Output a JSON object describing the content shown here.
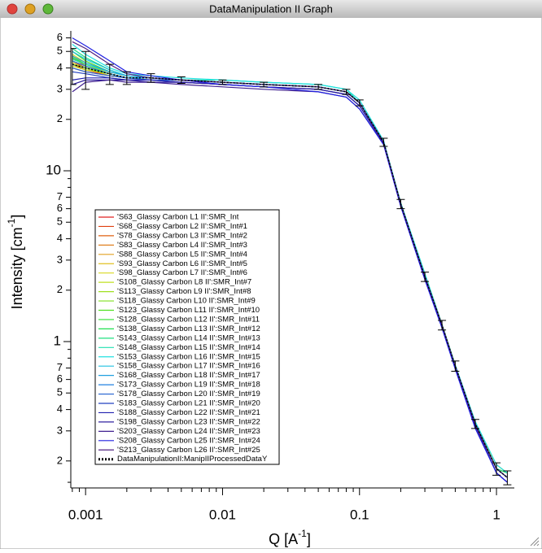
{
  "window": {
    "title": "DataManipulation II Graph"
  },
  "chart_data": {
    "type": "line",
    "log_x": true,
    "log_y": true,
    "xlabel": "Q [A",
    "xlabel_sup": "-1",
    "xlabel_end": "]",
    "ylabel": "Intensity [cm",
    "ylabel_sup": "-1",
    "ylabel_end": "]",
    "xlim": [
      0.00078,
      1.35
    ],
    "ylim": [
      0.139,
      64.5
    ],
    "xticks": [
      {
        "value": 0.001,
        "label": "0.001"
      },
      {
        "value": 0.01,
        "label": "0.01"
      },
      {
        "value": 0.1,
        "label": "0.1"
      },
      1
    ],
    "xminor_ticks": [
      0.0008,
      0.0009,
      0.002,
      0.003,
      0.004,
      0.005,
      0.006,
      0.007,
      0.008,
      0.009,
      0.02,
      0.03,
      0.04,
      0.05,
      0.06,
      0.07,
      0.08,
      0.09,
      0.2,
      0.3,
      0.4,
      0.5,
      0.6,
      0.7,
      0.8,
      0.9
    ],
    "yticks": [
      {
        "value": 60,
        "label": "6"
      },
      {
        "value": 50,
        "label": "5"
      },
      {
        "value": 40,
        "label": "4"
      },
      {
        "value": 30,
        "label": "3"
      },
      {
        "value": 20,
        "label": "2"
      },
      10,
      {
        "value": 7,
        "label": "7"
      },
      6,
      5,
      4,
      3,
      2,
      1,
      {
        "value": 0.7,
        "label": "7"
      },
      {
        "value": 0.6,
        "label": "6"
      },
      {
        "value": 0.5,
        "label": "5"
      },
      {
        "value": 0.4,
        "label": "4"
      },
      {
        "value": 0.3,
        "label": "3"
      },
      {
        "value": 0.2,
        "label": "2"
      }
    ],
    "yminor_ticks": [
      0.15,
      0.8,
      0.9,
      8,
      9
    ],
    "legend": "left",
    "x": [
      0.0008,
      0.001,
      0.0015,
      0.002,
      0.003,
      0.005,
      0.01,
      0.02,
      0.05,
      0.08,
      0.1,
      0.15,
      0.2,
      0.3,
      0.4,
      0.5,
      0.7,
      1,
      1.2
    ],
    "series": [
      {
        "name": "'S63_Glassy Carbon L1 II':SMR_Int",
        "color": "#e02020",
        "values": [
          44,
          40,
          37,
          35,
          35,
          34,
          33,
          32,
          31,
          29,
          25,
          14.7,
          6.4,
          2.4,
          1.25,
          0.72,
          0.33,
          0.18,
          0.16
        ]
      },
      {
        "name": "'S68_Glassy Carbon L2 II':SMR_Int#1",
        "color": "#e04010",
        "values": [
          42,
          39,
          36,
          35,
          35,
          34,
          33,
          32,
          31,
          29,
          25,
          14.8,
          6.5,
          2.4,
          1.26,
          0.72,
          0.33,
          0.18,
          0.17
        ]
      },
      {
        "name": "'S78_Glassy Carbon L3 II':SMR_Int#2",
        "color": "#e06010",
        "values": [
          46,
          41,
          37,
          35,
          35,
          34,
          33,
          32,
          31,
          29,
          25,
          14.7,
          6.4,
          2.4,
          1.25,
          0.71,
          0.33,
          0.18,
          0.16
        ]
      },
      {
        "name": "'S83_Glassy Carbon L4 II':SMR_Int#3",
        "color": "#e08020",
        "values": [
          40,
          38,
          36,
          35,
          35,
          34,
          33,
          32,
          31,
          29,
          25,
          14.6,
          6.3,
          2.4,
          1.24,
          0.72,
          0.33,
          0.18,
          0.16
        ]
      },
      {
        "name": "'S88_Glassy Carbon L5 II':SMR_Int#4",
        "color": "#e0a020",
        "values": [
          45,
          42,
          37,
          35,
          35,
          34,
          33,
          32,
          31,
          29,
          25,
          14.7,
          6.4,
          2.4,
          1.25,
          0.72,
          0.34,
          0.18,
          0.17
        ]
      },
      {
        "name": "'S93_Glassy Carbon L6 II':SMR_Int#5",
        "color": "#e0c020",
        "values": [
          43,
          40,
          36,
          35,
          35,
          34,
          33,
          32,
          31,
          29,
          25,
          14.8,
          6.4,
          2.4,
          1.25,
          0.72,
          0.33,
          0.19,
          0.17
        ]
      },
      {
        "name": "'S98_Glassy Carbon L7 II':SMR_Int#6",
        "color": "#d8d820",
        "values": [
          48,
          43,
          38,
          36,
          35,
          34,
          33,
          32,
          31,
          29,
          25,
          14.7,
          6.4,
          2.4,
          1.25,
          0.72,
          0.33,
          0.18,
          0.16
        ]
      },
      {
        "name": "'S108_Glassy Carbon L8 II':SMR_Int#7",
        "color": "#c0e020",
        "values": [
          41,
          39,
          37,
          35,
          35,
          34,
          33,
          32,
          31,
          29,
          25,
          14.7,
          6.5,
          2.4,
          1.25,
          0.72,
          0.33,
          0.18,
          0.16
        ]
      },
      {
        "name": "'S113_Glassy Carbon L9 II':SMR_Int#8",
        "color": "#a0e020",
        "values": [
          47,
          42,
          37,
          35,
          35,
          34,
          33,
          32,
          31,
          29,
          25,
          14.7,
          6.4,
          2.4,
          1.25,
          0.72,
          0.33,
          0.18,
          0.16
        ]
      },
      {
        "name": "'S118_Glassy Carbon L10 II':SMR_Int#9",
        "color": "#80e020",
        "values": [
          44,
          41,
          37,
          35,
          35,
          34,
          33,
          32,
          31,
          29,
          25,
          14.7,
          6.4,
          2.5,
          1.26,
          0.73,
          0.33,
          0.18,
          0.17
        ]
      },
      {
        "name": "'S123_Glassy Carbon L11 II':SMR_Int#10",
        "color": "#50e020",
        "values": [
          50,
          44,
          38,
          36,
          35,
          34,
          33,
          32,
          31,
          29,
          25,
          14.7,
          6.4,
          2.4,
          1.25,
          0.72,
          0.33,
          0.18,
          0.16
        ]
      },
      {
        "name": "'S128_Glassy Carbon L12 II':SMR_Int#11",
        "color": "#30e030",
        "values": [
          42,
          40,
          37,
          35,
          35,
          34,
          33,
          32,
          31,
          29,
          25,
          14.6,
          6.4,
          2.4,
          1.25,
          0.72,
          0.33,
          0.18,
          0.16
        ]
      },
      {
        "name": "'S138_Glassy Carbon L13 II':SMR_Int#12",
        "color": "#20e050",
        "values": [
          46,
          42,
          38,
          36,
          35,
          34,
          33,
          32,
          31,
          29,
          25,
          14.7,
          6.4,
          2.4,
          1.25,
          0.72,
          0.33,
          0.18,
          0.16
        ]
      },
      {
        "name": "'S143_Glassy Carbon L14 II':SMR_Int#13",
        "color": "#20e080",
        "values": [
          52,
          46,
          39,
          36,
          35,
          34,
          33,
          32,
          31,
          29,
          25,
          14.8,
          6.4,
          2.4,
          1.25,
          0.72,
          0.33,
          0.18,
          0.17
        ]
      },
      {
        "name": "'S148_Glassy Carbon L15 II':SMR_Int#14",
        "color": "#20e0b0",
        "values": [
          45,
          42,
          38,
          36,
          35,
          34,
          34,
          33,
          32,
          30,
          25,
          14.8,
          6.5,
          2.4,
          1.25,
          0.72,
          0.33,
          0.18,
          0.16
        ]
      },
      {
        "name": "'S153_Glassy Carbon L16 II':SMR_Int#15",
        "color": "#20e0e0",
        "values": [
          55,
          48,
          40,
          37,
          36,
          35,
          34,
          33,
          32,
          30,
          26,
          15,
          6.5,
          2.5,
          1.26,
          0.73,
          0.34,
          0.19,
          0.17
        ]
      },
      {
        "name": "'S158_Glassy Carbon L17 II':SMR_Int#16",
        "color": "#20c0e0",
        "values": [
          50,
          45,
          39,
          36,
          35,
          34,
          33,
          32,
          31,
          29,
          25,
          14.7,
          6.4,
          2.4,
          1.25,
          0.72,
          0.33,
          0.18,
          0.16
        ]
      },
      {
        "name": "'S168_Glassy Carbon L18 II':SMR_Int#17",
        "color": "#20a0e0",
        "values": [
          47,
          43,
          38,
          36,
          35,
          34,
          33,
          32,
          31,
          29,
          25,
          14.7,
          6.4,
          2.4,
          1.25,
          0.72,
          0.33,
          0.18,
          0.16
        ]
      },
      {
        "name": "'S173_Glassy Carbon L19 II':SMR_Int#18",
        "color": "#2080e0",
        "values": [
          44,
          41,
          37,
          35,
          35,
          34,
          33,
          32,
          31,
          29,
          25,
          14.7,
          6.4,
          2.4,
          1.25,
          0.72,
          0.33,
          0.18,
          0.16
        ]
      },
      {
        "name": "'S178_Glassy Carbon L20 II':SMR_Int#19",
        "color": "#2060d0",
        "values": [
          40,
          38,
          36,
          35,
          34,
          34,
          33,
          32,
          31,
          29,
          25,
          14.6,
          6.3,
          2.4,
          1.24,
          0.71,
          0.33,
          0.18,
          0.16
        ]
      },
      {
        "name": "'S183_Glassy Carbon L21 II':SMR_Int#20",
        "color": "#2040c0",
        "values": [
          38,
          37,
          35,
          34,
          34,
          33,
          32,
          31,
          30,
          28,
          24,
          14.5,
          6.3,
          2.4,
          1.24,
          0.71,
          0.32,
          0.18,
          0.16
        ]
      },
      {
        "name": "'S188_Glassy Carbon L22 II':SMR_Int#21",
        "color": "#2020b0",
        "values": [
          34,
          35,
          35,
          34,
          34,
          33,
          32,
          31,
          30,
          28,
          24,
          14.5,
          6.3,
          2.4,
          1.24,
          0.71,
          0.32,
          0.17,
          0.15
        ]
      },
      {
        "name": "'S198_Glassy Carbon L23 II':SMR_Int#22",
        "color": "#3020a0",
        "values": [
          32,
          34,
          34,
          34,
          33,
          33,
          32,
          31,
          30,
          28,
          24,
          14.5,
          6.3,
          2.4,
          1.23,
          0.7,
          0.32,
          0.17,
          0.15
        ]
      },
      {
        "name": "'S203_Glassy Carbon L24 II':SMR_Int#23",
        "color": "#402090",
        "values": [
          29,
          33,
          34,
          33,
          33,
          32,
          31,
          30,
          29,
          27,
          23,
          14.3,
          6.2,
          2.35,
          1.22,
          0.7,
          0.32,
          0.17,
          0.15
        ]
      },
      {
        "name": "'S208_Glassy Carbon L25 II':SMR_Int#24",
        "color": "#2020e0",
        "values": [
          60,
          54,
          44,
          38,
          36,
          34,
          32,
          31,
          29,
          27,
          23,
          14.2,
          6.2,
          2.3,
          1.2,
          0.69,
          0.31,
          0.17,
          0.15
        ]
      },
      {
        "name": "'S213_Glassy Carbon L26 II':SMR_Int#25",
        "color": "#502080",
        "values": [
          57,
          52,
          42,
          37,
          35,
          34,
          33,
          32,
          31,
          29,
          25,
          14.7,
          6.4,
          2.4,
          1.25,
          0.72,
          0.33,
          0.18,
          0.16
        ]
      },
      {
        "name": "DataManipulationII:ManipIIProcessedDataY",
        "color": "#000000",
        "dash": true,
        "values": [
          42,
          40,
          37,
          35,
          35,
          34,
          33,
          32,
          31,
          29,
          25,
          14.7,
          6.4,
          2.4,
          1.25,
          0.72,
          0.33,
          0.18,
          0.16
        ],
        "errors": [
          10,
          10,
          5,
          3,
          2,
          1.5,
          1,
          1,
          1,
          1,
          1,
          0.8,
          0.4,
          0.15,
          0.08,
          0.05,
          0.02,
          0.015,
          0.015
        ]
      }
    ]
  }
}
